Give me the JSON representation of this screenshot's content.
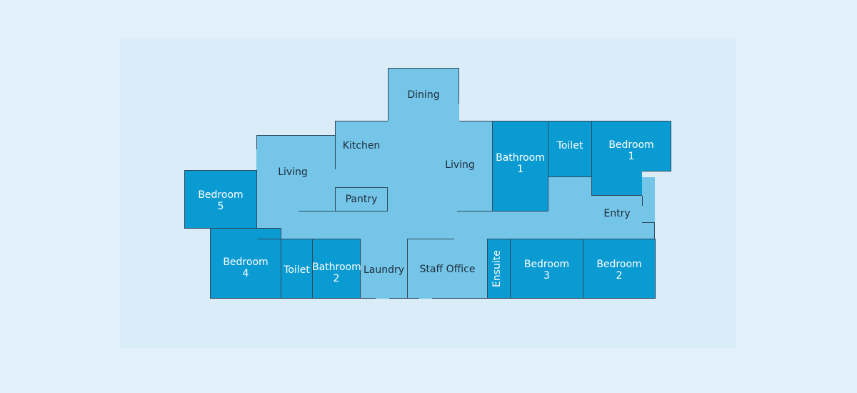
{
  "rooms": {
    "dining": "Dining",
    "kitchen": "Kitchen",
    "living_left": "Living",
    "living_center": "Living",
    "pantry": "Pantry",
    "bathroom_1": "Bathroom\n1",
    "toilet_top": "Toilet",
    "bedroom_1": "Bedroom\n1",
    "entry": "Entry",
    "bedroom_5": "Bedroom\n5",
    "bedroom_4": "Bedroom\n4",
    "toilet_bottom": "Toilet",
    "bathroom_2": "Bathroom\n2",
    "laundry": "Laundry",
    "staff_office": "Staff Office",
    "ensuite": "Ensuite",
    "bedroom_3": "Bedroom\n3",
    "bedroom_2": "Bedroom\n2"
  },
  "colors": {
    "page_background": "#e1f0fa",
    "panel_background": "#d9ecf8",
    "private_room": "#0b9bd3",
    "common_area": "#75c5e8",
    "wall": "#2f4a5c"
  }
}
